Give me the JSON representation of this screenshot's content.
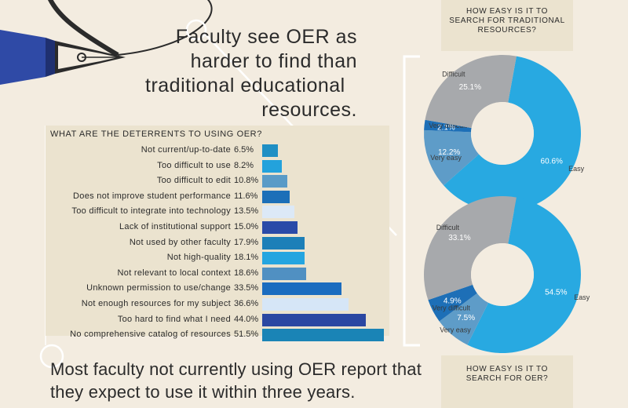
{
  "headline": [
    "Faculty see OER as",
    "harder to find than",
    "traditional educational",
    "resources."
  ],
  "footer": "Most faculty not currently using OER report that they expect to use it within three years.",
  "chart_data": [
    {
      "type": "bar",
      "orientation": "horizontal",
      "title": "WHAT ARE THE DETERRENTS TO USING OER?",
      "categories": [
        "Not current/up-to-date",
        "Too difficult to use",
        "Too difficult to edit",
        "Does not improve student performance",
        "Too difficult to integrate into technology",
        "Lack of institutional support",
        "Not used by other faculty",
        "Not high-quality",
        "Not relevant to local context",
        "Unknown permission to use/change",
        "Not enough resources for my subject",
        "Too hard to find what I need",
        "No comprehensive catalog of resources"
      ],
      "values": [
        6.5,
        8.2,
        10.8,
        11.6,
        13.5,
        15.0,
        17.9,
        18.1,
        18.6,
        33.5,
        36.6,
        44.0,
        51.5
      ],
      "value_labels": [
        "6.5%",
        "8.2%",
        "10.8%",
        "11.6%",
        "13.5%",
        "15.0%",
        "17.9%",
        "18.1%",
        "18.6%",
        "33.5%",
        "36.6%",
        "44.0%",
        "51.5%"
      ],
      "colors": [
        "#1f8fc4",
        "#23a2dc",
        "#5a9bc7",
        "#1c6fb8",
        "#dce9f7",
        "#2a4aa8",
        "#1c7fb8",
        "#24a5e0",
        "#5090c2",
        "#1b6cbf",
        "#d6e6f7",
        "#2a47a2",
        "#1a84b6"
      ]
    },
    {
      "type": "pie",
      "style": "donut",
      "title": "HOW EASY IS IT TO SEARCH FOR TRADITIONAL RESOURCES?",
      "categories": [
        "Easy",
        "Very easy",
        "Very difficult",
        "Difficult"
      ],
      "values": [
        60.6,
        12.2,
        2.1,
        25.1
      ],
      "value_labels": [
        "60.6%",
        "12.2%",
        "2.1%",
        "25.1%"
      ],
      "colors": [
        "#28a9e1",
        "#5e9cc8",
        "#1d6fb7",
        "#a7a9ac"
      ]
    },
    {
      "type": "pie",
      "style": "donut",
      "title": "HOW EASY IS IT TO SEARCH FOR OER?",
      "categories": [
        "Easy",
        "Very easy",
        "Very difficult",
        "Difficult"
      ],
      "values": [
        54.5,
        7.5,
        4.9,
        33.1
      ],
      "value_labels": [
        "54.5%",
        "7.5%",
        "4.9%",
        "33.1%"
      ],
      "colors": [
        "#28a9e1",
        "#5e9cc8",
        "#1d6fb7",
        "#a7a9ac"
      ]
    }
  ]
}
